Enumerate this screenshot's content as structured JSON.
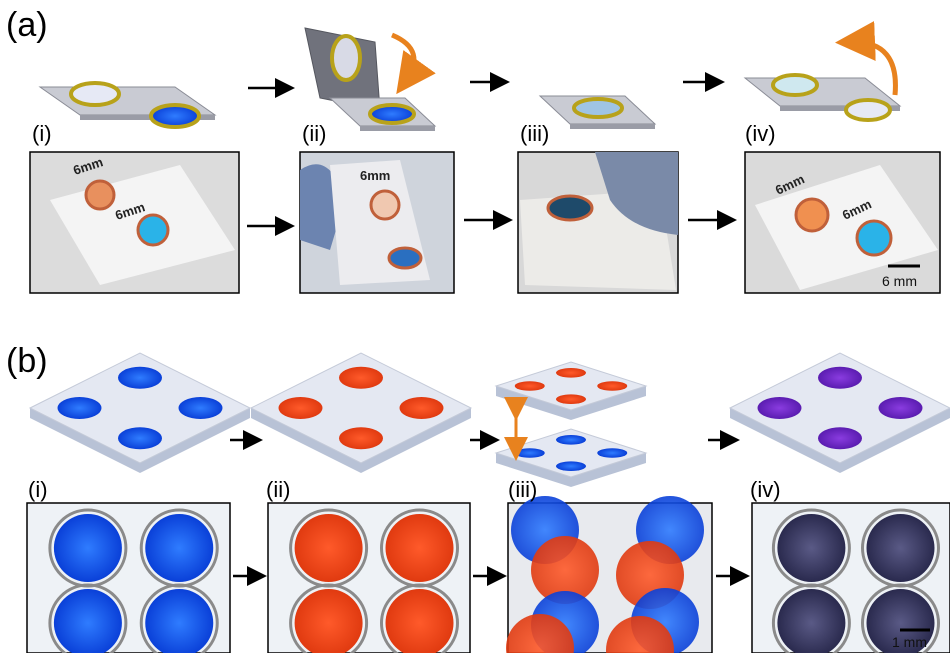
{
  "panels": [
    {
      "label": "(a)",
      "steps": [
        "(i)",
        "(ii)",
        "(iii)",
        "(iv)"
      ],
      "slide_text": "6mm",
      "scale_bar": "6 mm"
    },
    {
      "label": "(b)",
      "steps": [
        "(i)",
        "(ii)",
        "(iii)",
        "(iv)"
      ],
      "scale_bar": "1 mm"
    }
  ]
}
